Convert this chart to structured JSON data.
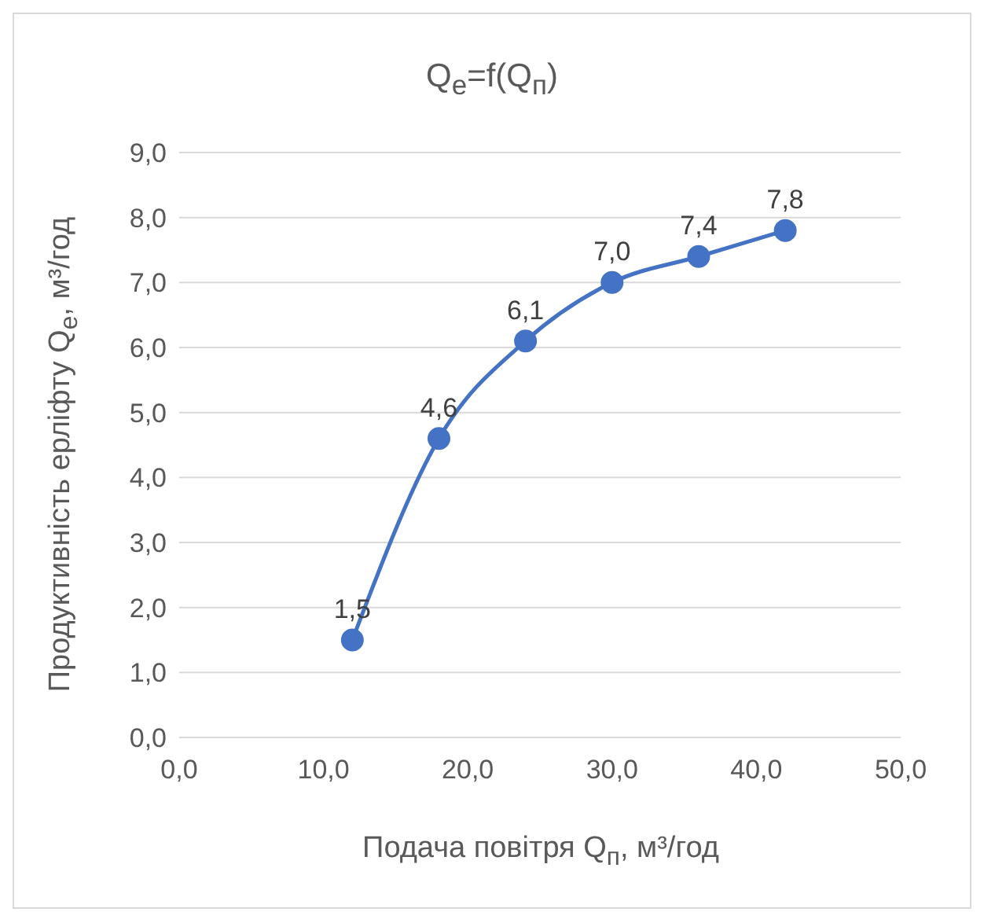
{
  "chart_data": {
    "type": "line",
    "title": "Q$_{е}$=f(Q$_{п}$)",
    "xlabel": "Подача повітря Q$_{п}$, м³/год",
    "ylabel": "Продуктивність ерліфту Q$_{е}$, м³/год",
    "x": [
      12,
      18,
      24,
      30,
      36,
      42
    ],
    "series": [
      {
        "color": "#4472c4",
        "values": [
          1.5,
          4.6,
          6.1,
          7.0,
          7.4,
          7.8
        ],
        "value_labels": [
          "1,5",
          "4,6",
          "6,1",
          "7,0",
          "7,4",
          "7,8"
        ]
      }
    ],
    "xlim": [
      0,
      50
    ],
    "xticks": [
      {
        "value": 0,
        "label": "0,0"
      },
      {
        "value": 10,
        "label": "10,0"
      },
      {
        "value": 20,
        "label": "20,0"
      },
      {
        "value": 30,
        "label": "30,0"
      },
      {
        "value": 40,
        "label": "40,0"
      },
      {
        "value": 50,
        "label": "50,0"
      }
    ],
    "ylim": [
      0,
      9
    ],
    "yticks": [
      {
        "value": 0,
        "label": "0,0"
      },
      {
        "value": 1,
        "label": "1,0"
      },
      {
        "value": 2,
        "label": "2,0"
      },
      {
        "value": 3,
        "label": "3,0"
      },
      {
        "value": 4,
        "label": "4,0"
      },
      {
        "value": 5,
        "label": "5,0"
      },
      {
        "value": 6,
        "label": "6,0"
      },
      {
        "value": 7,
        "label": "7,0"
      },
      {
        "value": 8,
        "label": "8,0"
      },
      {
        "value": 9,
        "label": "9,0"
      }
    ],
    "grid": "y",
    "legend": false,
    "marker": "circle",
    "line_style": "solid"
  }
}
